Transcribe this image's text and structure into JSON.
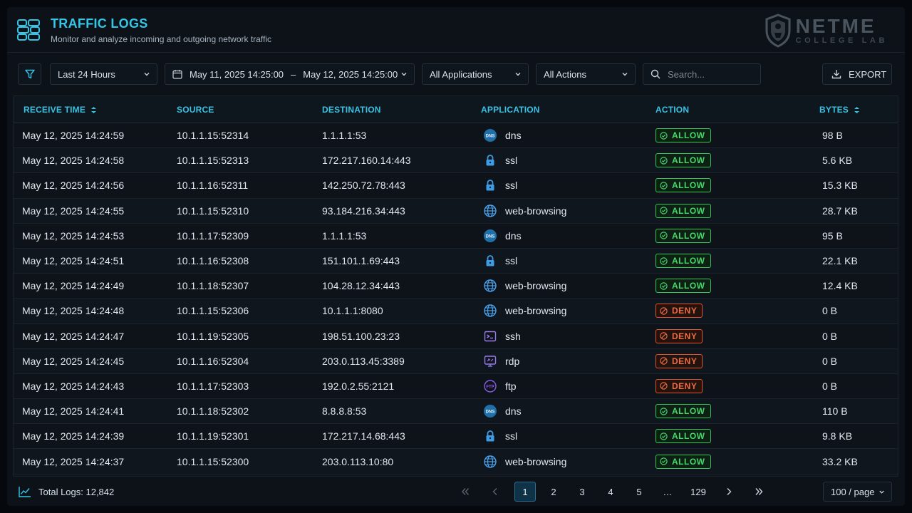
{
  "header": {
    "title": "TRAFFIC LOGS",
    "subtitle": "Monitor and analyze incoming and outgoing network traffic",
    "brand_name": "NETME",
    "brand_sub": "COLLEGE LAB",
    "logo_icon": "server-stack-icon"
  },
  "toolbar": {
    "time_range": "Last 24 Hours",
    "date_from": "May 11, 2025 14:25:00",
    "date_sep": "–",
    "date_to": "May 12, 2025 14:25:00",
    "applications": "All Applications",
    "actions": "All Actions",
    "search_placeholder": "Search...",
    "export_label": "EXPORT"
  },
  "table": {
    "columns": {
      "time": "RECEIVE TIME",
      "source": "SOURCE",
      "destination": "DESTINATION",
      "application": "APPLICATION",
      "action": "ACTION",
      "bytes": "BYTES"
    },
    "rows": [
      {
        "time": "May 12, 2025 14:24:59",
        "source": "10.1.1.15:52314",
        "destination": "1.1.1.1:53",
        "app": "dns",
        "action": "ALLOW",
        "bytes": "98 B"
      },
      {
        "time": "May 12, 2025 14:24:58",
        "source": "10.1.1.15:52313",
        "destination": "172.217.160.14:443",
        "app": "ssl",
        "action": "ALLOW",
        "bytes": "5.6 KB"
      },
      {
        "time": "May 12, 2025 14:24:56",
        "source": "10.1.1.16:52311",
        "destination": "142.250.72.78:443",
        "app": "ssl",
        "action": "ALLOW",
        "bytes": "15.3 KB"
      },
      {
        "time": "May 12, 2025 14:24:55",
        "source": "10.1.1.15:52310",
        "destination": "93.184.216.34:443",
        "app": "web-browsing",
        "action": "ALLOW",
        "bytes": "28.7 KB"
      },
      {
        "time": "May 12, 2025 14:24:53",
        "source": "10.1.1.17:52309",
        "destination": "1.1.1.1:53",
        "app": "dns",
        "action": "ALLOW",
        "bytes": "95 B"
      },
      {
        "time": "May 12, 2025 14:24:51",
        "source": "10.1.1.16:52308",
        "destination": "151.101.1.69:443",
        "app": "ssl",
        "action": "ALLOW",
        "bytes": "22.1 KB"
      },
      {
        "time": "May 12, 2025 14:24:49",
        "source": "10.1.1.18:52307",
        "destination": "104.28.12.34:443",
        "app": "web-browsing",
        "action": "ALLOW",
        "bytes": "12.4 KB"
      },
      {
        "time": "May 12, 2025 14:24:48",
        "source": "10.1.1.15:52306",
        "destination": "10.1.1.1:8080",
        "app": "web-browsing",
        "action": "DENY",
        "bytes": "0 B"
      },
      {
        "time": "May 12, 2025 14:24:47",
        "source": "10.1.1.19:52305",
        "destination": "198.51.100.23:23",
        "app": "ssh",
        "action": "DENY",
        "bytes": "0 B"
      },
      {
        "time": "May 12, 2025 14:24:45",
        "source": "10.1.1.16:52304",
        "destination": "203.0.113.45:3389",
        "app": "rdp",
        "action": "DENY",
        "bytes": "0 B"
      },
      {
        "time": "May 12, 2025 14:24:43",
        "source": "10.1.1.17:52303",
        "destination": "192.0.2.55:2121",
        "app": "ftp",
        "action": "DENY",
        "bytes": "0 B"
      },
      {
        "time": "May 12, 2025 14:24:41",
        "source": "10.1.1.18:52302",
        "destination": "8.8.8.8:53",
        "app": "dns",
        "action": "ALLOW",
        "bytes": "110 B"
      },
      {
        "time": "May 12, 2025 14:24:39",
        "source": "10.1.1.19:52301",
        "destination": "172.217.14.68:443",
        "app": "ssl",
        "action": "ALLOW",
        "bytes": "9.8 KB"
      },
      {
        "time": "May 12, 2025 14:24:37",
        "source": "10.1.1.15:52300",
        "destination": "203.0.113.10:80",
        "app": "web-browsing",
        "action": "ALLOW",
        "bytes": "33.2 KB"
      }
    ]
  },
  "footer": {
    "total_logs": "Total Logs: 12,842",
    "pages": [
      "1",
      "2",
      "3",
      "4",
      "5",
      "…",
      "129"
    ],
    "current_page": "1",
    "per_page": "100 / page"
  },
  "colors": {
    "accent": "#35c6e6",
    "allow": "#45d96a",
    "deny": "#f06a3f"
  }
}
